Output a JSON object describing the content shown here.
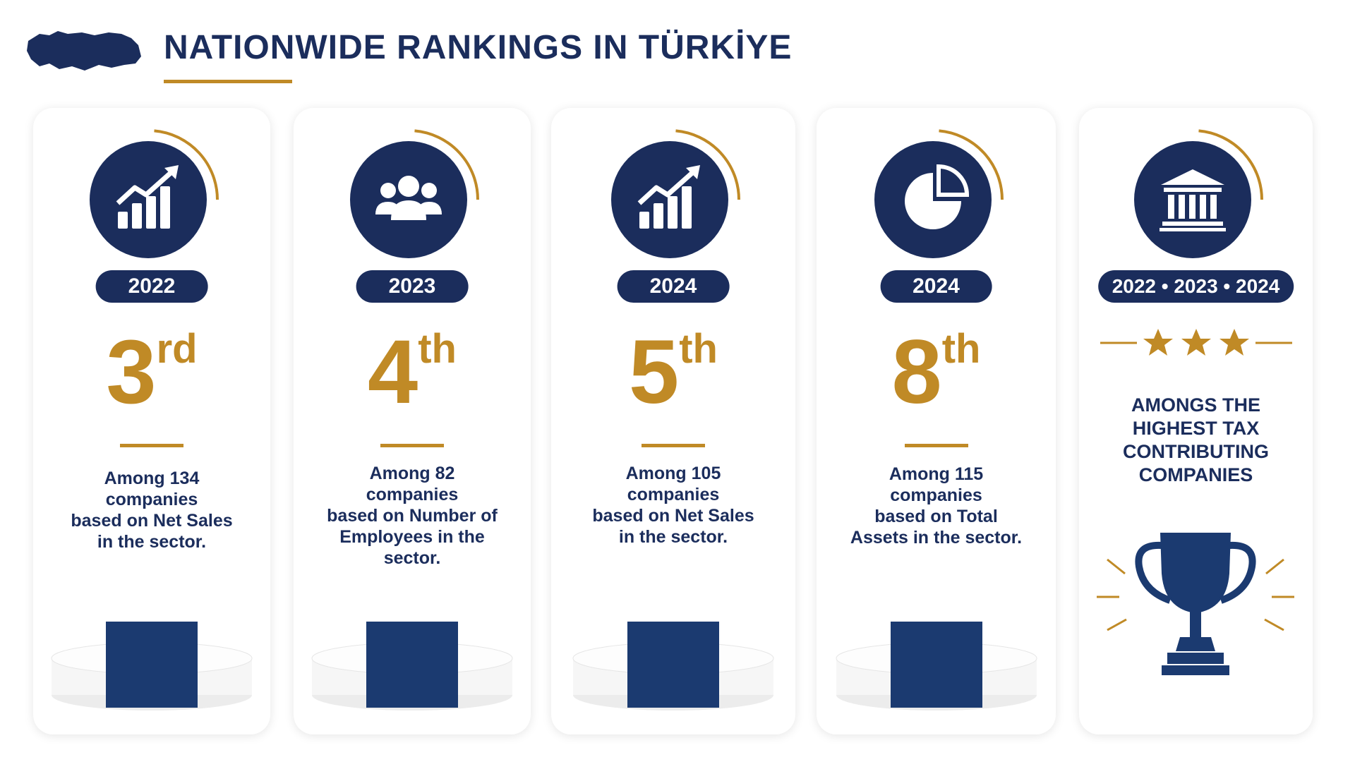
{
  "header": {
    "title": "NATIONWIDE RANKINGS IN TÜRKİYE"
  },
  "cards": [
    {
      "year": "2022",
      "rank": "3",
      "suffix": "rd",
      "description": [
        "Among 134",
        "companies",
        "based on Net Sales",
        "in the sector."
      ]
    },
    {
      "year": "2023",
      "rank": "4",
      "suffix": "th",
      "description": [
        "Among 82",
        "companies",
        "based on Number of",
        "Employees in the",
        "sector."
      ]
    },
    {
      "year": "2024",
      "rank": "5",
      "suffix": "th",
      "description": [
        "Among 105",
        "companies",
        "based on Net Sales",
        "in the sector."
      ]
    },
    {
      "year": "2024",
      "rank": "8",
      "suffix": "th",
      "description": [
        "Among 115",
        "companies",
        "based on Total",
        "Assets in the sector."
      ]
    }
  ],
  "highlight": {
    "years": "2022 • 2023 • 2024",
    "text": [
      "AMONGS THE",
      "HIGHEST TAX",
      "CONTRIBUTING",
      "COMPANIES"
    ]
  }
}
